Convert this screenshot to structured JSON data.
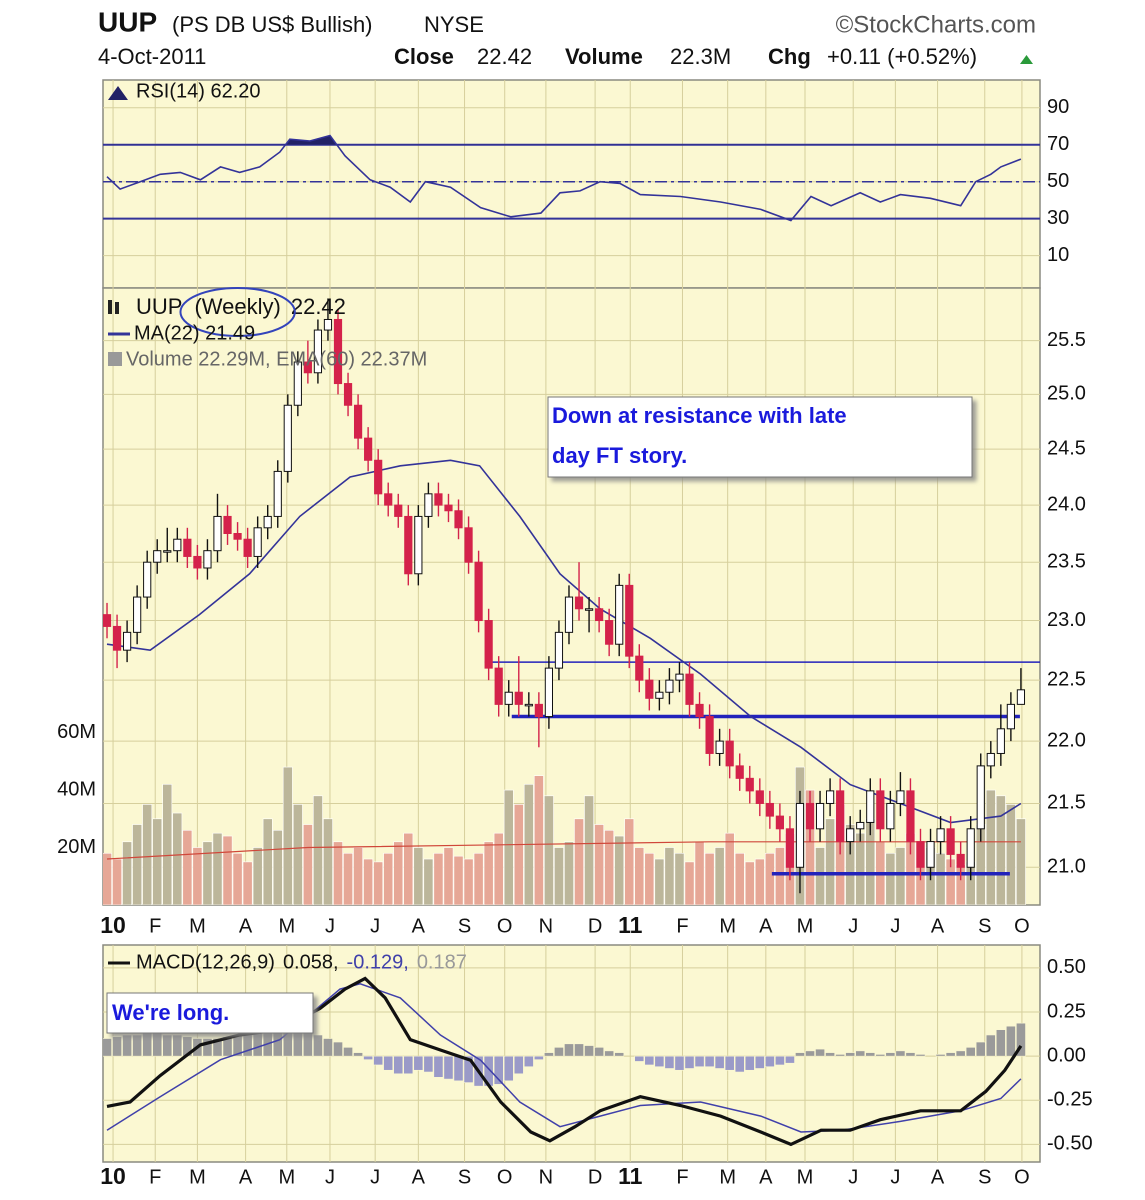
{
  "header": {
    "symbol": "UUP",
    "description": "(PS DB US$ Bullish)",
    "exchange": "NYSE",
    "source": "©StockCharts.com",
    "date": "4-Oct-2011",
    "close_label": "Close",
    "close": "22.42",
    "volume_label": "Volume",
    "volume": "22.3M",
    "change_label": "Chg",
    "change": "+0.11 (+0.52%)"
  },
  "chart_data": [
    {
      "type": "rsi",
      "title": "RSI(14) 62.20",
      "color": "#333399",
      "fill_color": "#222266",
      "x": [
        0,
        1.3,
        3.3,
        5.3,
        7.3,
        9.3,
        11.3,
        13.2,
        15.2,
        17.2,
        18.2,
        20.2,
        22.2,
        23.7,
        26.2,
        28.2,
        30.2,
        31.7,
        34.2,
        37.2,
        40.2,
        43.2,
        45.1,
        47.1,
        49.1,
        51.1,
        53.1,
        57.1,
        61.1,
        65.1,
        68.1,
        70.1,
        72.1,
        75.0,
        77.0,
        79.0,
        82.0,
        85.0,
        86.5,
        88.0,
        89.0,
        91.0
      ],
      "values": [
        52.7,
        46,
        50,
        54,
        55,
        51,
        58,
        55,
        58,
        66,
        73,
        72,
        75,
        64,
        51,
        47,
        39,
        50,
        47,
        36,
        31,
        33,
        44,
        45,
        50,
        49,
        43,
        42,
        39,
        35,
        29,
        42,
        37,
        44,
        39,
        43,
        41,
        37,
        50,
        54,
        58,
        62.2
      ],
      "ylim": [
        -7.5,
        105
      ],
      "yticks": [
        90,
        70,
        50,
        30,
        10
      ],
      "levels": [
        70,
        50,
        30
      ],
      "grid": true
    },
    {
      "type": "candlestick",
      "title": "UUP",
      "period": "(Weekly)",
      "last": "22.42",
      "log_scale": true,
      "grid": true,
      "up_color": "#ffffff",
      "down_color": "#d4224b",
      "open": [
        23.05,
        22.95,
        22.75,
        22.9,
        23.2,
        23.5,
        23.6,
        23.6,
        23.7,
        23.55,
        23.45,
        23.6,
        23.9,
        23.75,
        23.7,
        23.55,
        23.8,
        23.9,
        24.3,
        24.9,
        25.3,
        25.2,
        25.6,
        25.7,
        25.1,
        24.9,
        24.6,
        24.4,
        24.1,
        24.0,
        23.9,
        23.4,
        23.9,
        24.1,
        24.0,
        23.95,
        23.8,
        23.5,
        23.0,
        22.6,
        22.3,
        22.4,
        22.3,
        22.3,
        22.2,
        22.6,
        22.9,
        23.2,
        23.1,
        23.1,
        23.0,
        22.8,
        23.3,
        22.7,
        22.5,
        22.35,
        22.4,
        22.5,
        22.55,
        22.3,
        22.2,
        21.9,
        22.0,
        21.8,
        21.7,
        21.6,
        21.5,
        21.4,
        21.3,
        21.0,
        21.5,
        21.3,
        21.5,
        21.6,
        21.2,
        21.3,
        21.35,
        21.6,
        21.3,
        21.5,
        21.6,
        21.2,
        21.0,
        21.2,
        21.3,
        21.1,
        21.0,
        21.3,
        21.8,
        21.9,
        22.1,
        22.3
      ],
      "high": [
        23.15,
        23.05,
        23.0,
        23.3,
        23.6,
        23.7,
        23.8,
        23.8,
        23.8,
        23.65,
        23.7,
        24.1,
        24.0,
        23.85,
        23.8,
        23.9,
        24.0,
        24.4,
        25.0,
        25.4,
        25.5,
        25.7,
        25.9,
        25.8,
        25.2,
        25.0,
        24.7,
        24.5,
        24.2,
        24.1,
        24.0,
        24.0,
        24.2,
        24.2,
        24.1,
        24.05,
        23.9,
        23.6,
        23.1,
        22.7,
        22.5,
        22.7,
        22.4,
        22.4,
        22.7,
        23.0,
        23.3,
        23.5,
        23.2,
        23.2,
        23.1,
        23.4,
        23.4,
        22.8,
        22.6,
        22.5,
        22.6,
        22.65,
        22.65,
        22.4,
        22.3,
        22.1,
        22.1,
        21.9,
        21.8,
        21.7,
        21.6,
        21.5,
        21.4,
        21.6,
        21.6,
        21.6,
        21.7,
        21.7,
        21.4,
        21.45,
        21.7,
        21.7,
        21.6,
        21.75,
        21.7,
        21.3,
        21.3,
        21.4,
        21.4,
        21.2,
        21.4,
        21.9,
        22.0,
        22.3,
        22.4,
        22.6
      ],
      "low": [
        22.85,
        22.6,
        22.65,
        22.8,
        23.1,
        23.4,
        23.5,
        23.5,
        23.45,
        23.35,
        23.35,
        23.5,
        23.65,
        23.6,
        23.45,
        23.45,
        23.7,
        23.8,
        24.2,
        24.8,
        25.1,
        25.1,
        25.5,
        25.0,
        24.8,
        24.5,
        24.3,
        24.0,
        23.9,
        23.8,
        23.3,
        23.3,
        23.8,
        23.9,
        23.85,
        23.7,
        23.4,
        22.9,
        22.5,
        22.2,
        22.2,
        22.2,
        22.2,
        21.95,
        22.1,
        22.5,
        22.8,
        23.0,
        22.9,
        22.9,
        22.7,
        22.7,
        22.6,
        22.4,
        22.25,
        22.25,
        22.3,
        22.4,
        22.2,
        22.1,
        21.8,
        21.8,
        21.7,
        21.6,
        21.5,
        21.4,
        21.3,
        21.2,
        20.9,
        20.8,
        21.2,
        21.2,
        21.4,
        21.1,
        21.1,
        21.2,
        21.25,
        21.2,
        21.2,
        21.4,
        21.1,
        20.9,
        20.9,
        21.1,
        21.0,
        20.9,
        20.9,
        21.2,
        21.7,
        21.8,
        22.0,
        22.3
      ],
      "close": [
        22.95,
        22.75,
        22.9,
        23.2,
        23.5,
        23.6,
        23.6,
        23.7,
        23.55,
        23.45,
        23.6,
        23.9,
        23.75,
        23.7,
        23.55,
        23.8,
        23.9,
        24.3,
        24.9,
        25.3,
        25.2,
        25.6,
        25.7,
        25.1,
        24.9,
        24.6,
        24.4,
        24.1,
        24.0,
        23.9,
        23.4,
        23.9,
        24.1,
        24.0,
        23.95,
        23.8,
        23.5,
        23.0,
        22.6,
        22.3,
        22.4,
        22.3,
        22.3,
        22.2,
        22.6,
        22.9,
        23.2,
        23.1,
        23.1,
        23.0,
        22.8,
        23.3,
        22.7,
        22.5,
        22.35,
        22.4,
        22.5,
        22.55,
        22.3,
        22.2,
        21.9,
        22.0,
        21.8,
        21.7,
        21.6,
        21.5,
        21.4,
        21.3,
        21.0,
        21.5,
        21.3,
        21.5,
        21.6,
        21.2,
        21.3,
        21.35,
        21.6,
        21.3,
        21.5,
        21.6,
        21.2,
        21.0,
        21.2,
        21.3,
        21.1,
        21.0,
        21.3,
        21.8,
        21.9,
        22.1,
        22.3,
        22.42
      ],
      "ma": {
        "name": "MA(22) 21.49",
        "color": "#333399",
        "x": [
          0,
          4.3,
          9.2,
          14.2,
          19.2,
          24.2,
          29.2,
          34.2,
          37.1,
          41.1,
          45.1,
          49.1,
          54.1,
          59.1,
          64.1,
          69.1,
          74.0,
          79,
          84,
          89,
          91
        ],
        "values": [
          22.8,
          22.75,
          23.05,
          23.4,
          23.9,
          24.25,
          24.35,
          24.4,
          24.35,
          23.9,
          23.4,
          23.1,
          22.85,
          22.55,
          22.2,
          21.95,
          21.65,
          21.5,
          21.35,
          21.4,
          21.5
        ]
      },
      "volume": {
        "name": "Volume 22.29M, EMA(60) 22.37M",
        "up_color": "#bcb69a",
        "down_color": "#e6a796",
        "ema_color": "#d0473a",
        "values": [
          18,
          16,
          22,
          28,
          35,
          30,
          42,
          32,
          26,
          20,
          22,
          25,
          24,
          18,
          15,
          20,
          30,
          26,
          48,
          35,
          28,
          38,
          30,
          22,
          18,
          20,
          16,
          15,
          18,
          22,
          25,
          20,
          16,
          18,
          20,
          17,
          16,
          18,
          22,
          25,
          40,
          35,
          42,
          45,
          38,
          20,
          22,
          30,
          38,
          28,
          26,
          24,
          30,
          20,
          18,
          16,
          20,
          18,
          15,
          22,
          18,
          20,
          25,
          18,
          15,
          16,
          18,
          20,
          25,
          48,
          40,
          20,
          30,
          35,
          28,
          25,
          30,
          22,
          18,
          20,
          25,
          22,
          20,
          18,
          16,
          14,
          15,
          28,
          40,
          38,
          35,
          30
        ],
        "ema_x": [
          0,
          20,
          40,
          60,
          80,
          91
        ],
        "ema": [
          16,
          20,
          21,
          22,
          22,
          22
        ],
        "ylim": [
          0,
          71
        ],
        "yticks": [
          {
            "value": 60,
            "label": "60M"
          },
          {
            "value": 40,
            "label": "40M"
          },
          {
            "value": 20,
            "label": "20M"
          }
        ]
      },
      "ylim": [
        20.71,
        26.0
      ],
      "yticks": [
        25.5,
        {
          "value": 25,
          "label": "25.0"
        },
        24.5,
        {
          "value": 24,
          "label": "24.0"
        },
        23.5,
        {
          "value": 23,
          "label": "23.0"
        },
        22.5,
        {
          "value": 22,
          "label": "22.0"
        },
        21.5,
        {
          "value": 21,
          "label": "21.0"
        }
      ],
      "xlim": [
        -0.4,
        92.9
      ],
      "xticks": [
        {
          "value": 0.6,
          "label": "10"
        },
        {
          "value": 4.8,
          "label": "F"
        },
        {
          "value": 9,
          "label": "M"
        },
        {
          "value": 13.8,
          "label": "A"
        },
        {
          "value": 17.9,
          "label": "M"
        },
        {
          "value": 22.2,
          "label": "J"
        },
        {
          "value": 26.7,
          "label": "J"
        },
        {
          "value": 31,
          "label": "A"
        },
        {
          "value": 35.6,
          "label": "S"
        },
        {
          "value": 39.6,
          "label": "O"
        },
        {
          "value": 43.7,
          "label": "N"
        },
        {
          "value": 48.6,
          "label": "D"
        },
        {
          "value": 52.1,
          "label": "11"
        },
        {
          "value": 57.3,
          "label": "F"
        },
        {
          "value": 61.8,
          "label": "M"
        },
        {
          "value": 65.6,
          "label": "A"
        },
        {
          "value": 69.5,
          "label": "M"
        },
        {
          "value": 74.3,
          "label": "J"
        },
        {
          "value": 78.5,
          "label": "J"
        },
        {
          "value": 82.7,
          "label": "A"
        },
        {
          "value": 87.4,
          "label": "S"
        },
        {
          "value": 91.1,
          "label": "O"
        }
      ],
      "lines": [
        {
          "value": 22.65,
          "x": [
            37.6,
            92.9
          ]
        },
        {
          "value": 22.2,
          "x": [
            40.3,
            90.9
          ]
        },
        {
          "value": 20.95,
          "x": [
            66.2,
            89.9
          ]
        }
      ],
      "line_color": "#2222bb",
      "annotation": [
        "Down at resistance with late",
        "day FT story."
      ]
    },
    {
      "type": "macd",
      "title": "MACD(12,26,9)",
      "macd_label": "0.058,",
      "signal_label": "-0.129,",
      "hist_label": "0.187",
      "macd_color": "#111111",
      "signal_color": "#4040aa",
      "hist_up_color": "#9a9a9a",
      "hist_down_color": "#9a9ac8",
      "macd_x": [
        0,
        2.3,
        5.3,
        9.3,
        13.2,
        17.2,
        21.2,
        23.7,
        25.7,
        27.7,
        30.2,
        33.2,
        36.2,
        39.2,
        42.2,
        44.1,
        46.6,
        49.1,
        53.1,
        57.1,
        61.1,
        65.1,
        68.1,
        71.1,
        74.0,
        77.0,
        81.0,
        85.0,
        87.5,
        89.4,
        91.0
      ],
      "macd": [
        -0.285,
        -0.26,
        -0.11,
        0.064,
        0.12,
        0.15,
        0.27,
        0.38,
        0.44,
        0.33,
        0.093,
        0.035,
        -0.023,
        -0.26,
        -0.43,
        -0.48,
        -0.4,
        -0.31,
        -0.23,
        -0.28,
        -0.34,
        -0.43,
        -0.5,
        -0.42,
        -0.42,
        -0.36,
        -0.31,
        -0.31,
        -0.2,
        -0.08,
        0.058
      ],
      "signal_x": [
        0,
        5.3,
        11.3,
        17.2,
        23.2,
        25.2,
        29.2,
        33.2,
        37.2,
        41.1,
        45.1,
        49.1,
        53.1,
        59.1,
        65.1,
        69.1,
        73.1,
        79.0,
        85.0,
        89.0,
        91.0
      ],
      "signal": [
        -0.42,
        -0.23,
        -0.02,
        0.093,
        0.38,
        0.41,
        0.33,
        0.12,
        -0.023,
        -0.26,
        -0.4,
        -0.34,
        -0.28,
        -0.26,
        -0.34,
        -0.43,
        -0.42,
        -0.37,
        -0.31,
        -0.24,
        -0.129
      ],
      "histogram": [
        0.1,
        0.11,
        0.12,
        0.12,
        0.13,
        0.13,
        0.12,
        0.12,
        0.11,
        0.1,
        0.1,
        0.1,
        0.11,
        0.12,
        0.14,
        0.16,
        0.18,
        0.19,
        0.2,
        0.18,
        0.15,
        0.12,
        0.1,
        0.08,
        0.05,
        0.02,
        -0.02,
        -0.05,
        -0.08,
        -0.1,
        -0.1,
        -0.08,
        -0.09,
        -0.12,
        -0.13,
        -0.14,
        -0.15,
        -0.17,
        -0.17,
        -0.16,
        -0.14,
        -0.1,
        -0.06,
        -0.02,
        0.02,
        0.05,
        0.07,
        0.07,
        0.06,
        0.05,
        0.03,
        0.02,
        0.0,
        -0.03,
        -0.05,
        -0.06,
        -0.07,
        -0.08,
        -0.07,
        -0.06,
        -0.06,
        -0.07,
        -0.08,
        -0.09,
        -0.08,
        -0.07,
        -0.06,
        -0.05,
        -0.04,
        0.02,
        0.03,
        0.04,
        0.02,
        0.01,
        0.02,
        0.03,
        0.02,
        0.01,
        0.02,
        0.03,
        0.02,
        0.01,
        0.0,
        0.01,
        0.02,
        0.03,
        0.05,
        0.08,
        0.12,
        0.15,
        0.17,
        0.187
      ],
      "ylim": [
        -0.6,
        0.63
      ],
      "yticks": [
        {
          "value": 0.5,
          "label": "0.50"
        },
        0.25,
        {
          "value": 0,
          "label": "0.00"
        },
        -0.25,
        {
          "value": -0.5,
          "label": "-0.50"
        }
      ],
      "xlim": [
        -0.4,
        92.9
      ],
      "xticks": [
        {
          "value": 0.6,
          "label": "10"
        },
        {
          "value": 4.8,
          "label": "F"
        },
        {
          "value": 9,
          "label": "M"
        },
        {
          "value": 13.8,
          "label": "A"
        },
        {
          "value": 17.9,
          "label": "M"
        },
        {
          "value": 22.2,
          "label": "J"
        },
        {
          "value": 26.7,
          "label": "J"
        },
        {
          "value": 31,
          "label": "A"
        },
        {
          "value": 35.6,
          "label": "S"
        },
        {
          "value": 39.6,
          "label": "O"
        },
        {
          "value": 43.7,
          "label": "N"
        },
        {
          "value": 48.6,
          "label": "D"
        },
        {
          "value": 52.1,
          "label": "11"
        },
        {
          "value": 57.3,
          "label": "F"
        },
        {
          "value": 61.8,
          "label": "M"
        },
        {
          "value": 65.6,
          "label": "A"
        },
        {
          "value": 69.5,
          "label": "M"
        },
        {
          "value": 74.3,
          "label": "J"
        },
        {
          "value": 78.5,
          "label": "J"
        },
        {
          "value": 82.7,
          "label": "A"
        },
        {
          "value": 87.4,
          "label": "S"
        },
        {
          "value": 91.1,
          "label": "O"
        }
      ],
      "annotation": "We're long."
    }
  ]
}
